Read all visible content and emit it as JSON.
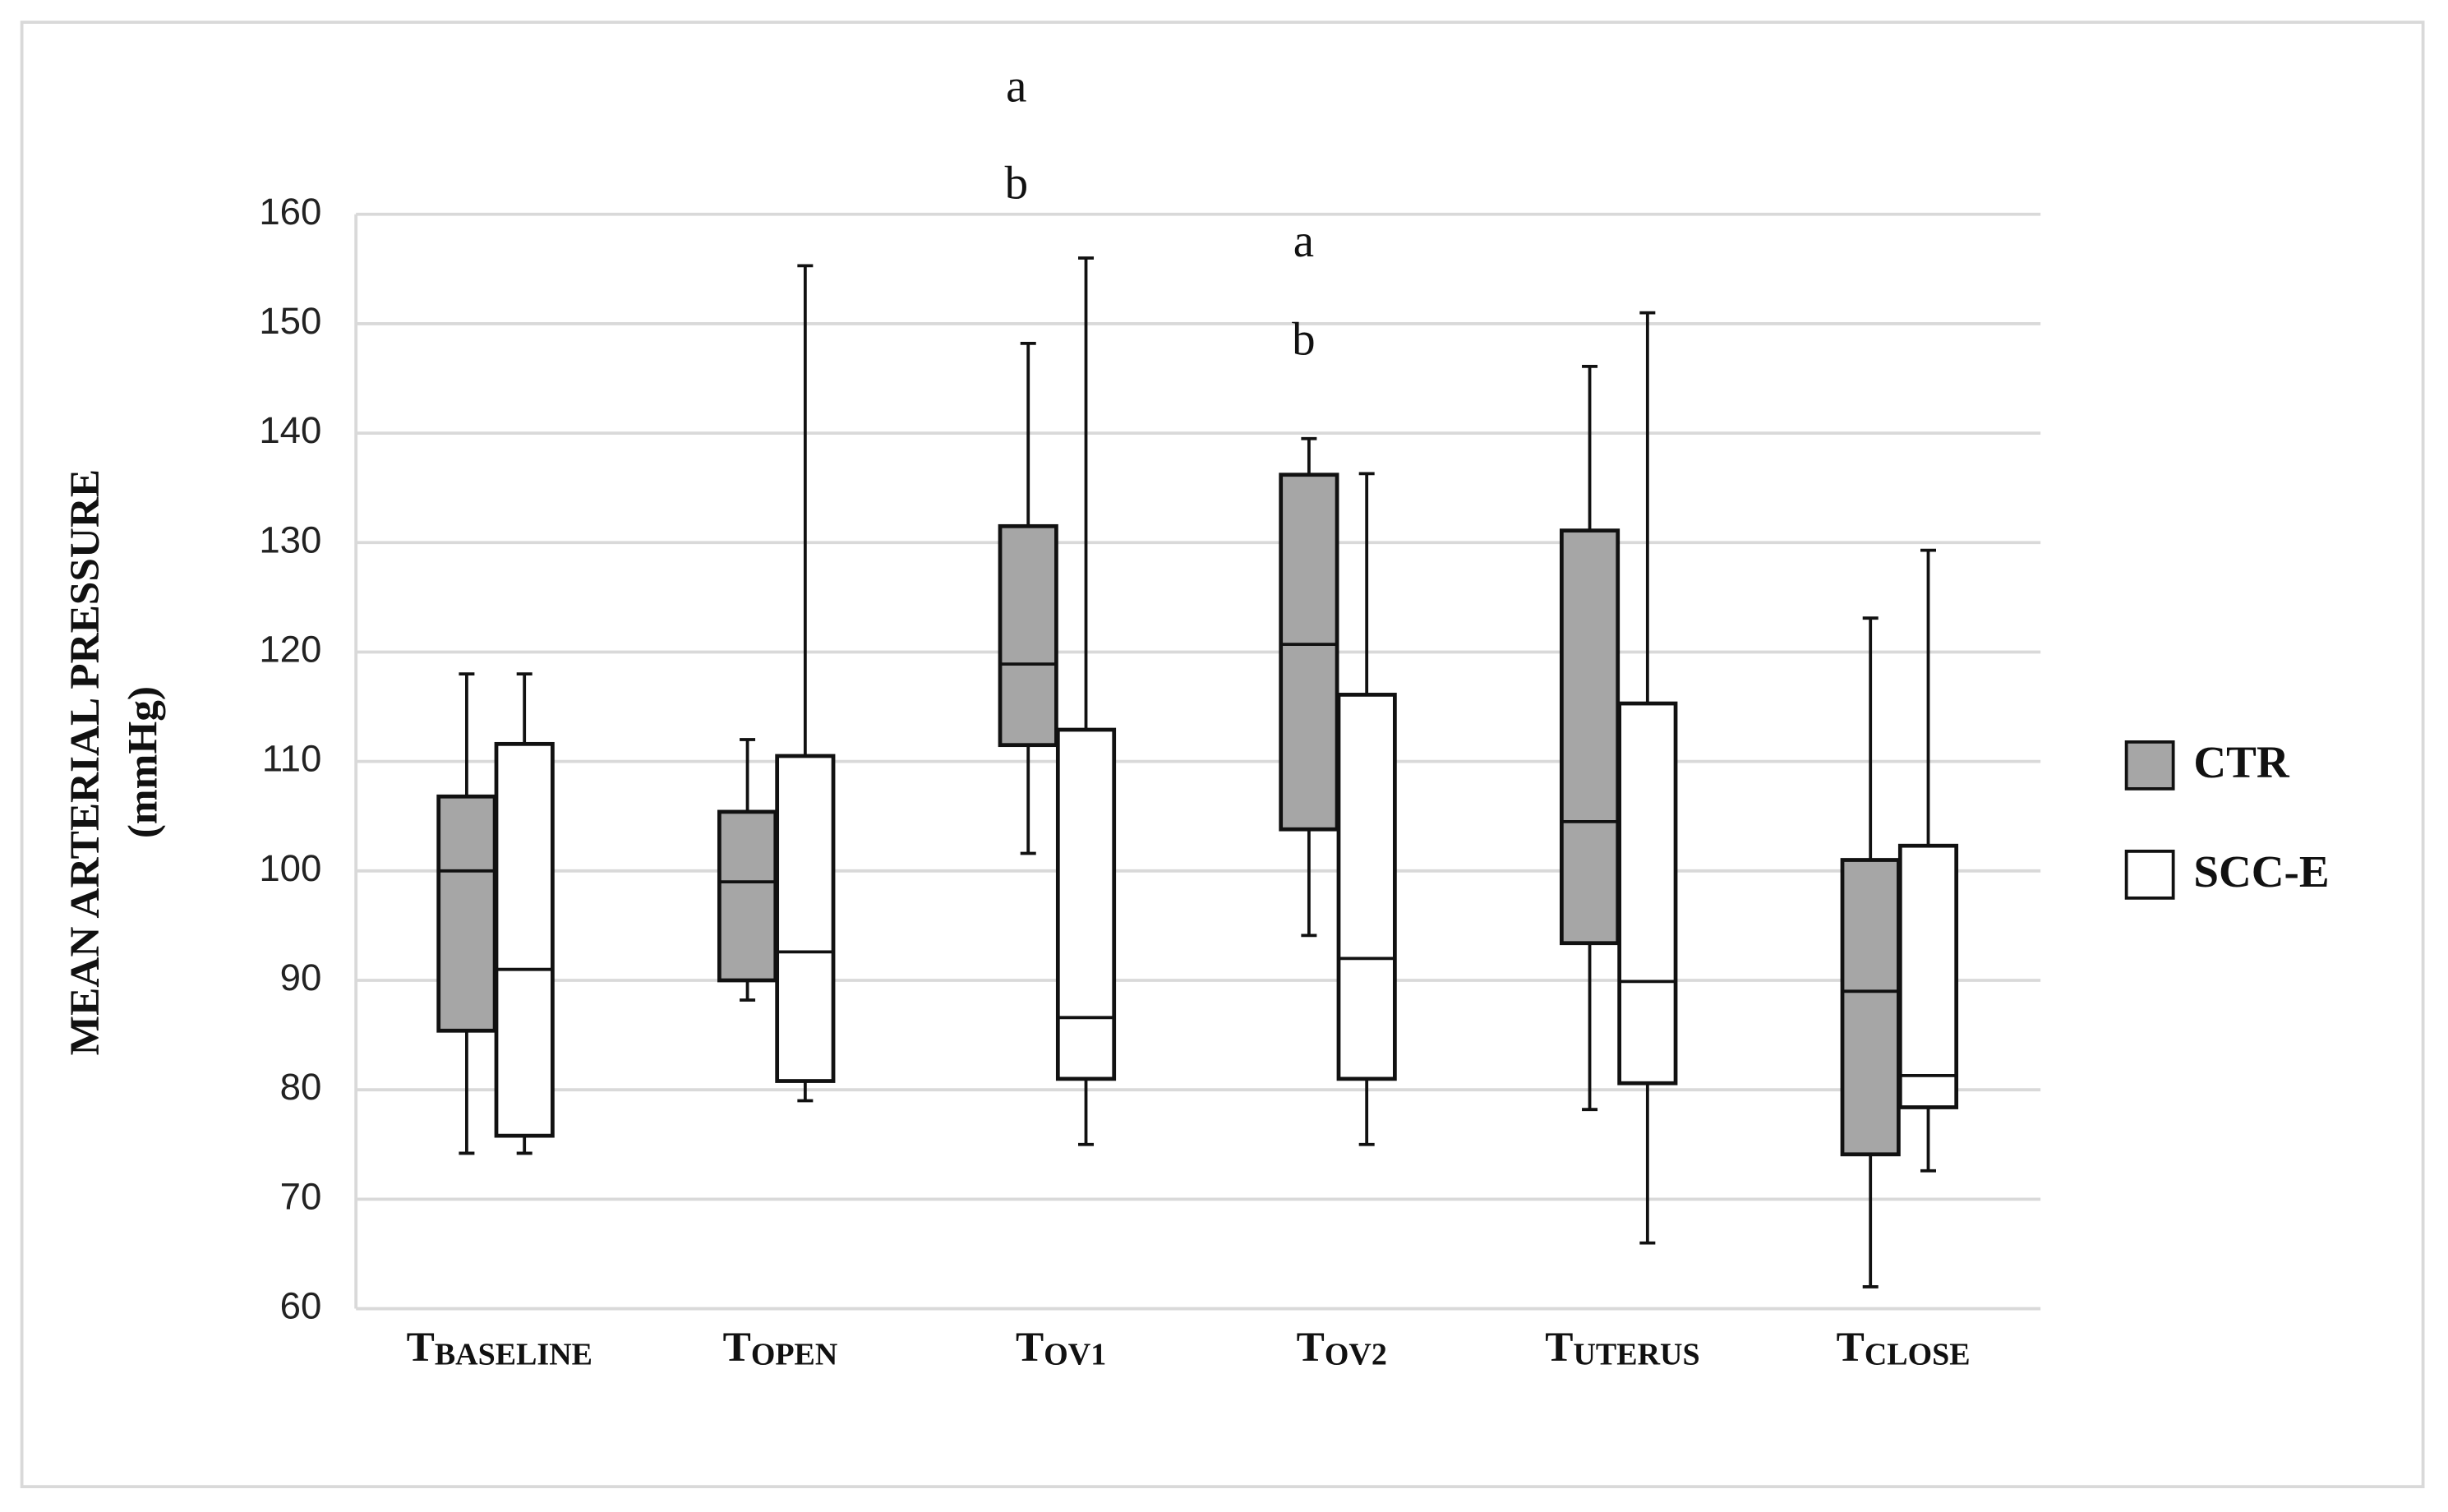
{
  "chart_data": {
    "type": "box",
    "ylabel_lines": [
      "MEAN ARTERIAL PRESSURE",
      "(mmHg)"
    ],
    "categories": [
      {
        "text": "T",
        "subscript": "BASELINE"
      },
      {
        "text": "T",
        "subscript": "OPEN"
      },
      {
        "text": "T",
        "subscript": "OV1"
      },
      {
        "text": "T",
        "subscript": "OV2"
      },
      {
        "text": "T",
        "subscript": "UTERUS"
      },
      {
        "text": "T",
        "subscript": "CLOSE"
      }
    ],
    "series": [
      {
        "name": "CTR",
        "color": "#a6a6a6",
        "min": [
          74.2,
          88.2,
          101.6,
          94.1,
          78.2,
          62
        ],
        "q1": [
          85.4,
          90,
          111.5,
          103.8,
          93.4,
          74.1
        ],
        "median": [
          100,
          99,
          118.9,
          120.7,
          104.5,
          89
        ],
        "q3": [
          106.8,
          105.4,
          131.5,
          136.2,
          131.1,
          101
        ],
        "max": [
          118,
          112,
          148.2,
          139.5,
          146.1,
          123.1
        ]
      },
      {
        "name": "SCC-E",
        "color": "#ffffff",
        "min": [
          74.2,
          79,
          75,
          75,
          66,
          72.6
        ],
        "q1": [
          75.8,
          80.8,
          81,
          81,
          80.6,
          78.4
        ],
        "median": [
          91,
          92.6,
          86.6,
          92,
          89.9,
          81.3
        ],
        "q3": [
          111.6,
          110.5,
          112.9,
          116.1,
          115.3,
          102.3
        ],
        "max": [
          118,
          155.3,
          156,
          136.3,
          151,
          129.3
        ]
      }
    ],
    "annotations": [
      "a",
      "b",
      "a",
      "b"
    ],
    "ylim": [
      60,
      160
    ],
    "yticks": [
      60,
      70,
      80,
      90,
      100,
      110,
      120,
      130,
      140,
      150,
      160
    ],
    "grid": true,
    "legend": "right"
  }
}
